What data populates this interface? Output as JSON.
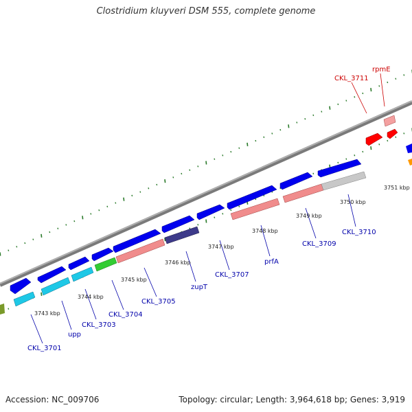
{
  "title": "Clostridium kluyveri DSM 555, complete genome",
  "accession_text": "Accession: NC_009706",
  "summary_text": "Topology: circular; Length: 3,964,618 bp; Genes: 3,919",
  "colors": {
    "cds_blue": "#0000ee",
    "cyan": "#1ec8e6",
    "salmon": "#f08c8c",
    "green": "#33cc33",
    "dark_purple": "#3d3a8a",
    "grey": "#c8c8c8",
    "red": "#ff0000",
    "light_red": "#f4a0a0",
    "orange": "#ff9900",
    "olive": "#7a9a2a",
    "tick_green": "#2a7a2a",
    "backbone": "#909090"
  },
  "kbp_labels": [
    "3743 kbp",
    "3744 kbp",
    "3745 kbp",
    "3746 kbp",
    "3747 kbp",
    "3748 kbp",
    "3749 kbp",
    "3750 kbp",
    "3751 kbp"
  ],
  "gene_labels": [
    "CKL_3701",
    "upp",
    "CKL_3703",
    "CKL_3704",
    "CKL_3705",
    "zupT",
    "CKL_3707",
    "prfA",
    "CKL_3709",
    "CKL_3710",
    "CKL_3711",
    "rpmE"
  ]
}
